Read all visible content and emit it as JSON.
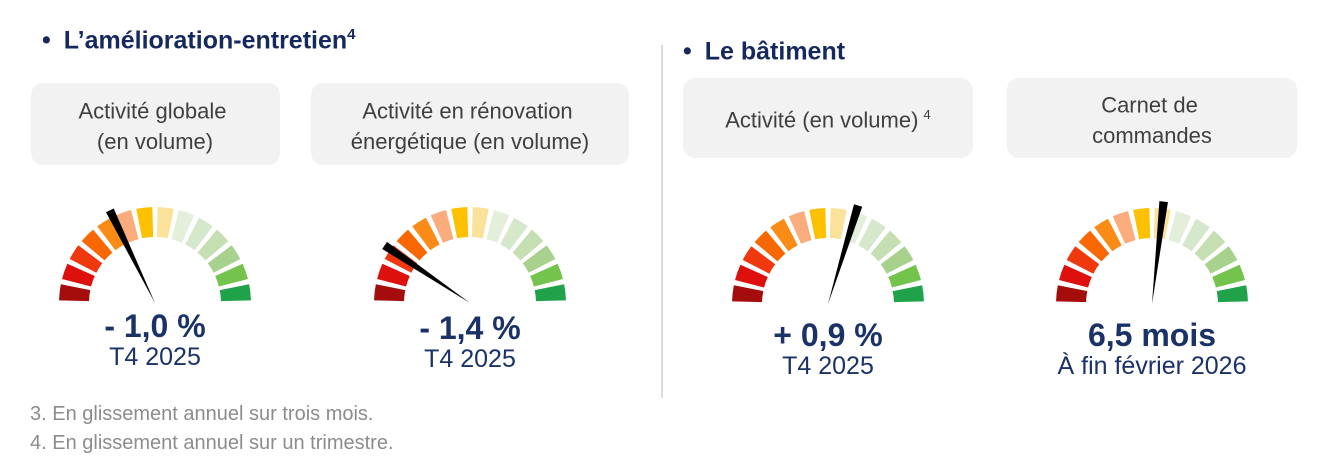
{
  "sections": [
    {
      "bullet": "•",
      "title": "L’amélioration-entretien",
      "title_sup": "4",
      "cards": [
        {
          "label_lines": [
            "Activité globale",
            "(en volume)"
          ],
          "value": "- 1,0 %",
          "caption": "T4 2025"
        },
        {
          "label_lines": [
            "Activité en rénovation",
            "énergétique (en volume)"
          ],
          "value": "- 1,4 %",
          "caption": "T4 2025"
        }
      ]
    },
    {
      "bullet": "•",
      "title": "Le bâtiment",
      "cards": [
        {
          "label_lines": [
            "Activité (en volume)"
          ],
          "label_sup": "4",
          "value": "+ 0,9 %",
          "caption": "T4 2025"
        },
        {
          "label_lines": [
            "Carnet de",
            "commandes"
          ],
          "value": "6,5 mois",
          "caption": "À fin février 2026"
        }
      ]
    }
  ],
  "footnotes": [
    "3. En glissement annuel sur trois mois.",
    "4. En glissement annuel sur un trimestre."
  ],
  "gauge_style": {
    "segments": 14,
    "arc_span_deg": 180,
    "segment_colors": [
      "#A50D0D",
      "#DE100E",
      "#F0380F",
      "#F96703",
      "#FB8B17",
      "#FBAC7D",
      "#FDC101",
      "#FBE29B",
      "#E3EFDB",
      "#D5E8CC",
      "#C5DFB3",
      "#A9D18E",
      "#73C34D",
      "#1FA24A"
    ],
    "needle_color": "#000000"
  },
  "colors": {
    "title_navy": "#16295F",
    "value_navy": "#1A3268",
    "label_text": "#3F3F3F",
    "label_bg": "#F2F2F2",
    "footnote_gray": "#8C8C8C",
    "divider": "#DCDCDC"
  },
  "chart_data": [
    {
      "type": "gauge",
      "title": "Activité globale (en volume)",
      "value": -1.0,
      "unit": "%",
      "display_value": "- 1,0 %",
      "period": "T4 2025",
      "needle_angle_deg": 116,
      "scale_note": "semi-circular 14-segment scale, red (left/negative) to green (right/positive)"
    },
    {
      "type": "gauge",
      "title": "Activité en rénovation énergétique (en volume)",
      "value": -1.4,
      "unit": "%",
      "display_value": "- 1,4 %",
      "period": "T4 2025",
      "needle_angle_deg": 146,
      "scale_note": "semi-circular 14-segment scale, red (left/negative) to green (right/positive)"
    },
    {
      "type": "gauge",
      "title": "Activité (en volume)",
      "value": 0.9,
      "unit": "%",
      "display_value": "+ 0,9 %",
      "period": "T4 2025",
      "needle_angle_deg": 73,
      "scale_note": "semi-circular 14-segment scale, red (left/negative) to green (right/positive)"
    },
    {
      "type": "gauge",
      "title": "Carnet de commandes",
      "value": 6.5,
      "unit": "mois",
      "display_value": "6,5 mois",
      "period": "À fin février 2026",
      "needle_angle_deg": 83.5,
      "scale_note": "semi-circular 14-segment scale, red (left) to green (right)"
    }
  ]
}
